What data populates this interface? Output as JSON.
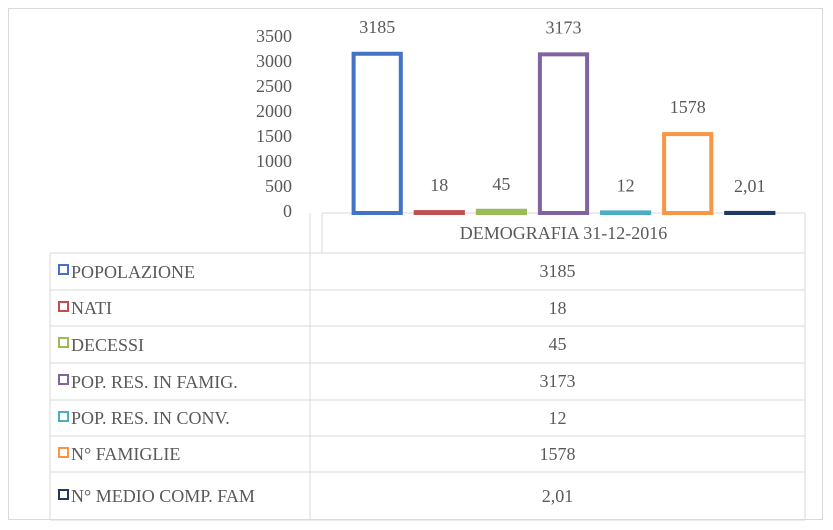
{
  "chart_data": {
    "type": "bar",
    "bar_style": "outline",
    "data_table": true,
    "categories": [
      "DEMOGRAFIA 31-12-2016"
    ],
    "series": [
      {
        "name": "POPOLAZIONE",
        "color": "#4472c4",
        "values": [
          3185
        ]
      },
      {
        "name": "NATI",
        "color": "#c0504d",
        "values": [
          18
        ]
      },
      {
        "name": "DECESSI",
        "color": "#9bbb59",
        "values": [
          45
        ]
      },
      {
        "name": "POP. RES. IN FAMIG.",
        "color": "#8064a2",
        "values": [
          3173
        ]
      },
      {
        "name": "POP. RES. IN CONV.",
        "color": "#4bacc6",
        "values": [
          12
        ]
      },
      {
        "name": "N° FAMIGLIE",
        "color": "#f79646",
        "values": [
          1578
        ]
      },
      {
        "name": "N° MEDIO COMP. FAM",
        "color": "#1f3864",
        "values": [
          2.01
        ],
        "value_labels": [
          "2,01"
        ]
      }
    ],
    "ylim": [
      0,
      3500
    ],
    "yticks": [
      0,
      500,
      1000,
      1500,
      2000,
      2500,
      3000,
      3500
    ],
    "grid": false
  }
}
